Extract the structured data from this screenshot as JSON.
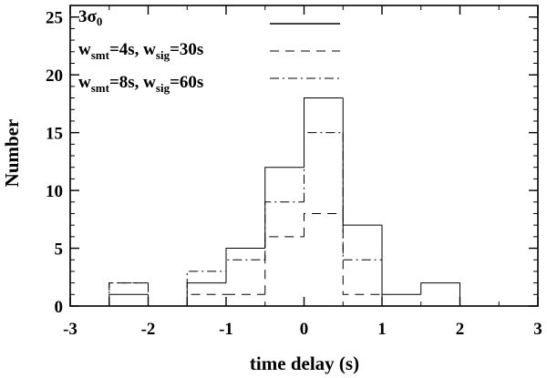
{
  "chart_data": {
    "type": "histogram",
    "title": "",
    "xlabel": "time delay (s)",
    "ylabel": "Number",
    "xlim": [
      -3,
      3
    ],
    "ylim": [
      0,
      26
    ],
    "bin_edges": [
      -2.5,
      -2.0,
      -1.5,
      -1.0,
      -0.5,
      0.0,
      0.5,
      1.0,
      1.5,
      2.0
    ],
    "x_ticks": [
      -3,
      -2,
      -1,
      0,
      1,
      2,
      3
    ],
    "x_tick_labels": [
      "-3",
      "-2",
      "-1",
      "0",
      "1",
      "2",
      "3"
    ],
    "y_ticks": [
      0,
      5,
      10,
      15,
      20,
      25
    ],
    "y_tick_labels": [
      "0",
      "5",
      "10",
      "15",
      "20",
      "25"
    ],
    "legend_placement": "top-left",
    "series": [
      {
        "name": "3σ0",
        "name_main": "3σ",
        "name_sub": "0",
        "line_style": "solid",
        "values": [
          1,
          0,
          2,
          5,
          12,
          18,
          7,
          1,
          2
        ]
      },
      {
        "name": "wsmt=4s, wsig=30s",
        "label_parts": {
          "w1": "w",
          "s1": "smt",
          "mid": "=4s, w",
          "s2": "sig",
          "end": "=30s"
        },
        "line_style": "dashed",
        "values": [
          2,
          0,
          1,
          1,
          6,
          8,
          1,
          0,
          0
        ]
      },
      {
        "name": "wsmt=8s, wsig=60s",
        "label_parts": {
          "w1": "w",
          "s1": "smt",
          "mid": "=8s, w",
          "s2": "sig",
          "end": "=60s"
        },
        "line_style": "dashdot",
        "values": [
          2,
          0,
          3,
          4,
          9,
          15,
          4,
          0,
          0
        ]
      }
    ]
  }
}
